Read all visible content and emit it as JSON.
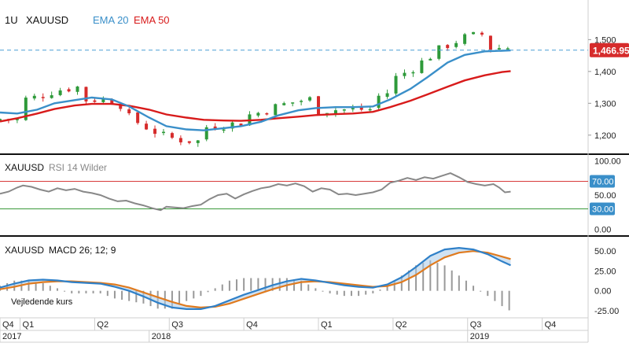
{
  "chart_data": [
    {
      "type": "candlestick",
      "panel": "price",
      "interval": "1U",
      "symbol": "XAUUSD",
      "overlays": [
        {
          "name": "EMA 20",
          "color": "#3a8fc9"
        },
        {
          "name": "EMA 50",
          "color": "#d81b1b"
        }
      ],
      "last_price": "1,466.95",
      "last_value": 1466.95,
      "ylim": [
        1150,
        1580
      ],
      "yticks": [
        {
          "value": 1500,
          "label": "1,500"
        },
        {
          "value": 1400,
          "label": "1,400"
        },
        {
          "value": 1300,
          "label": "1,300"
        },
        {
          "value": 1200,
          "label": "1,200"
        }
      ],
      "candles": [],
      "ema20": [
        {
          "t": 0,
          "v": 1271
        },
        {
          "t": 6,
          "v": 1268
        },
        {
          "t": 13,
          "v": 1280
        },
        {
          "t": 19,
          "v": 1300
        },
        {
          "t": 26,
          "v": 1310
        },
        {
          "t": 32,
          "v": 1318
        },
        {
          "t": 39,
          "v": 1312
        },
        {
          "t": 45,
          "v": 1290
        },
        {
          "t": 52,
          "v": 1255
        },
        {
          "t": 58,
          "v": 1228
        },
        {
          "t": 65,
          "v": 1218
        },
        {
          "t": 71,
          "v": 1215
        },
        {
          "t": 78,
          "v": 1222
        },
        {
          "t": 84,
          "v": 1228
        },
        {
          "t": 91,
          "v": 1242
        },
        {
          "t": 97,
          "v": 1262
        },
        {
          "t": 104,
          "v": 1278
        },
        {
          "t": 110,
          "v": 1285
        },
        {
          "t": 117,
          "v": 1288
        },
        {
          "t": 123,
          "v": 1288
        },
        {
          "t": 130,
          "v": 1290
        },
        {
          "t": 136,
          "v": 1312
        },
        {
          "t": 143,
          "v": 1345
        },
        {
          "t": 149,
          "v": 1382
        },
        {
          "t": 156,
          "v": 1428
        },
        {
          "t": 162,
          "v": 1452
        },
        {
          "t": 169,
          "v": 1463
        },
        {
          "t": 175,
          "v": 1465
        },
        {
          "t": 178,
          "v": 1466
        }
      ],
      "ema50": [
        {
          "t": 0,
          "v": 1243
        },
        {
          "t": 6,
          "v": 1253
        },
        {
          "t": 13,
          "v": 1268
        },
        {
          "t": 19,
          "v": 1282
        },
        {
          "t": 26,
          "v": 1293
        },
        {
          "t": 32,
          "v": 1298
        },
        {
          "t": 39,
          "v": 1298
        },
        {
          "t": 45,
          "v": 1292
        },
        {
          "t": 52,
          "v": 1280
        },
        {
          "t": 58,
          "v": 1265
        },
        {
          "t": 65,
          "v": 1255
        },
        {
          "t": 71,
          "v": 1248
        },
        {
          "t": 78,
          "v": 1246
        },
        {
          "t": 84,
          "v": 1245
        },
        {
          "t": 91,
          "v": 1248
        },
        {
          "t": 97,
          "v": 1253
        },
        {
          "t": 104,
          "v": 1258
        },
        {
          "t": 110,
          "v": 1263
        },
        {
          "t": 117,
          "v": 1266
        },
        {
          "t": 123,
          "v": 1268
        },
        {
          "t": 130,
          "v": 1273
        },
        {
          "t": 136,
          "v": 1288
        },
        {
          "t": 143,
          "v": 1308
        },
        {
          "t": 149,
          "v": 1328
        },
        {
          "t": 156,
          "v": 1352
        },
        {
          "t": 162,
          "v": 1372
        },
        {
          "t": 169,
          "v": 1388
        },
        {
          "t": 175,
          "v": 1398
        },
        {
          "t": 178,
          "v": 1401
        }
      ]
    },
    {
      "type": "line",
      "panel": "rsi",
      "symbol": "XAUUSD",
      "indicator": "RSI 14 Wilder",
      "ylim": [
        -5,
        105
      ],
      "yticks": [
        {
          "value": 100,
          "label": "100.00"
        },
        {
          "value": 70,
          "label": "70.00"
        },
        {
          "value": 50,
          "label": "50.00"
        },
        {
          "value": 30,
          "label": "30.00"
        },
        {
          "value": 0,
          "label": "0.00"
        }
      ],
      "levels": [
        {
          "value": 70,
          "label": "70.00",
          "color": "#d83b3b"
        },
        {
          "value": 30,
          "label": "30.00",
          "color": "#3a9a3a"
        }
      ],
      "series": [
        {
          "color": "#888888",
          "points": [
            {
              "t": 0,
              "v": 52
            },
            {
              "t": 3,
              "v": 55
            },
            {
              "t": 6,
              "v": 61
            },
            {
              "t": 8,
              "v": 64
            },
            {
              "t": 11,
              "v": 62
            },
            {
              "t": 14,
              "v": 58
            },
            {
              "t": 17,
              "v": 55
            },
            {
              "t": 20,
              "v": 60
            },
            {
              "t": 23,
              "v": 57
            },
            {
              "t": 26,
              "v": 59
            },
            {
              "t": 29,
              "v": 55
            },
            {
              "t": 32,
              "v": 53
            },
            {
              "t": 35,
              "v": 50
            },
            {
              "t": 38,
              "v": 45
            },
            {
              "t": 41,
              "v": 41
            },
            {
              "t": 44,
              "v": 42
            },
            {
              "t": 47,
              "v": 38
            },
            {
              "t": 50,
              "v": 35
            },
            {
              "t": 53,
              "v": 31
            },
            {
              "t": 56,
              "v": 28
            },
            {
              "t": 58,
              "v": 33
            },
            {
              "t": 61,
              "v": 32
            },
            {
              "t": 64,
              "v": 31
            },
            {
              "t": 67,
              "v": 34
            },
            {
              "t": 70,
              "v": 36
            },
            {
              "t": 73,
              "v": 44
            },
            {
              "t": 76,
              "v": 50
            },
            {
              "t": 79,
              "v": 52
            },
            {
              "t": 82,
              "v": 45
            },
            {
              "t": 85,
              "v": 51
            },
            {
              "t": 88,
              "v": 56
            },
            {
              "t": 91,
              "v": 60
            },
            {
              "t": 94,
              "v": 62
            },
            {
              "t": 97,
              "v": 66
            },
            {
              "t": 100,
              "v": 64
            },
            {
              "t": 103,
              "v": 67
            },
            {
              "t": 106,
              "v": 63
            },
            {
              "t": 109,
              "v": 55
            },
            {
              "t": 112,
              "v": 60
            },
            {
              "t": 115,
              "v": 58
            },
            {
              "t": 118,
              "v": 51
            },
            {
              "t": 121,
              "v": 52
            },
            {
              "t": 124,
              "v": 50
            },
            {
              "t": 127,
              "v": 52
            },
            {
              "t": 130,
              "v": 54
            },
            {
              "t": 133,
              "v": 58
            },
            {
              "t": 136,
              "v": 68
            },
            {
              "t": 139,
              "v": 71
            },
            {
              "t": 142,
              "v": 75
            },
            {
              "t": 145,
              "v": 72
            },
            {
              "t": 148,
              "v": 76
            },
            {
              "t": 151,
              "v": 74
            },
            {
              "t": 154,
              "v": 78
            },
            {
              "t": 157,
              "v": 82
            },
            {
              "t": 160,
              "v": 76
            },
            {
              "t": 163,
              "v": 69
            },
            {
              "t": 166,
              "v": 66
            },
            {
              "t": 169,
              "v": 64
            },
            {
              "t": 172,
              "v": 66
            },
            {
              "t": 174,
              "v": 61
            },
            {
              "t": 176,
              "v": 54
            },
            {
              "t": 178,
              "v": 55
            }
          ]
        }
      ]
    },
    {
      "type": "line",
      "panel": "macd",
      "symbol": "XAUUSD",
      "indicator": "MACD 26; 12; 9",
      "ylim": [
        -30,
        65
      ],
      "yticks": [
        {
          "value": 50,
          "label": "50.00"
        },
        {
          "value": 25,
          "label": "25.00"
        },
        {
          "value": 0,
          "label": "0.00"
        },
        {
          "value": -25,
          "label": "-25.00"
        }
      ],
      "series": [
        {
          "color": "#2f80c8",
          "points": [
            {
              "t": 0,
              "v": 4
            },
            {
              "t": 5,
              "v": 9
            },
            {
              "t": 10,
              "v": 13
            },
            {
              "t": 15,
              "v": 14
            },
            {
              "t": 20,
              "v": 13
            },
            {
              "t": 25,
              "v": 11
            },
            {
              "t": 30,
              "v": 10
            },
            {
              "t": 35,
              "v": 9
            },
            {
              "t": 40,
              "v": 5
            },
            {
              "t": 45,
              "v": 0
            },
            {
              "t": 50,
              "v": -7
            },
            {
              "t": 55,
              "v": -15
            },
            {
              "t": 60,
              "v": -21
            },
            {
              "t": 65,
              "v": -23
            },
            {
              "t": 70,
              "v": -23
            },
            {
              "t": 75,
              "v": -19
            },
            {
              "t": 80,
              "v": -12
            },
            {
              "t": 85,
              "v": -5
            },
            {
              "t": 90,
              "v": 1
            },
            {
              "t": 95,
              "v": 7
            },
            {
              "t": 100,
              "v": 12
            },
            {
              "t": 105,
              "v": 15
            },
            {
              "t": 110,
              "v": 13
            },
            {
              "t": 115,
              "v": 10
            },
            {
              "t": 120,
              "v": 7
            },
            {
              "t": 125,
              "v": 5
            },
            {
              "t": 130,
              "v": 4
            },
            {
              "t": 135,
              "v": 8
            },
            {
              "t": 140,
              "v": 17
            },
            {
              "t": 145,
              "v": 30
            },
            {
              "t": 150,
              "v": 44
            },
            {
              "t": 155,
              "v": 52
            },
            {
              "t": 160,
              "v": 54
            },
            {
              "t": 165,
              "v": 52
            },
            {
              "t": 170,
              "v": 46
            },
            {
              "t": 175,
              "v": 37
            },
            {
              "t": 178,
              "v": 32
            }
          ]
        },
        {
          "color": "#e07b1f",
          "points": [
            {
              "t": 0,
              "v": 2
            },
            {
              "t": 5,
              "v": 5
            },
            {
              "t": 10,
              "v": 9
            },
            {
              "t": 15,
              "v": 11
            },
            {
              "t": 20,
              "v": 12
            },
            {
              "t": 25,
              "v": 12
            },
            {
              "t": 30,
              "v": 11
            },
            {
              "t": 35,
              "v": 10
            },
            {
              "t": 40,
              "v": 8
            },
            {
              "t": 45,
              "v": 4
            },
            {
              "t": 50,
              "v": -2
            },
            {
              "t": 55,
              "v": -8
            },
            {
              "t": 60,
              "v": -14
            },
            {
              "t": 65,
              "v": -19
            },
            {
              "t": 70,
              "v": -21
            },
            {
              "t": 75,
              "v": -20
            },
            {
              "t": 80,
              "v": -16
            },
            {
              "t": 85,
              "v": -10
            },
            {
              "t": 90,
              "v": -4
            },
            {
              "t": 95,
              "v": 2
            },
            {
              "t": 100,
              "v": 7
            },
            {
              "t": 105,
              "v": 11
            },
            {
              "t": 110,
              "v": 12
            },
            {
              "t": 115,
              "v": 11
            },
            {
              "t": 120,
              "v": 9
            },
            {
              "t": 125,
              "v": 7
            },
            {
              "t": 130,
              "v": 5
            },
            {
              "t": 135,
              "v": 6
            },
            {
              "t": 140,
              "v": 11
            },
            {
              "t": 145,
              "v": 20
            },
            {
              "t": 150,
              "v": 32
            },
            {
              "t": 155,
              "v": 42
            },
            {
              "t": 160,
              "v": 48
            },
            {
              "t": 165,
              "v": 50
            },
            {
              "t": 170,
              "v": 48
            },
            {
              "t": 175,
              "v": 43
            },
            {
              "t": 178,
              "v": 40
            }
          ]
        }
      ],
      "histogram_color": "#999999",
      "histogram": []
    }
  ],
  "xaxis": {
    "quarters": [
      {
        "t": 0,
        "label": "Q4"
      },
      {
        "t": 7,
        "label": "Q1"
      },
      {
        "t": 33,
        "label": "Q2"
      },
      {
        "t": 59,
        "label": "Q3"
      },
      {
        "t": 85,
        "label": "Q4"
      },
      {
        "t": 111,
        "label": "Q1"
      },
      {
        "t": 137,
        "label": "Q2"
      },
      {
        "t": 163,
        "label": "Q3"
      },
      {
        "t": 189,
        "label": "Q4"
      }
    ],
    "years": [
      {
        "t": 0,
        "label": "2017"
      },
      {
        "t": 52,
        "label": "2018"
      },
      {
        "t": 163,
        "label": "2019"
      }
    ],
    "t_range": [
      0,
      205
    ]
  },
  "source_label": "Vejledende kurs",
  "colors": {
    "up": "#2e9a3a",
    "down": "#d62b2b",
    "price_line": "#4a9fd5",
    "badge": "#d62b2b",
    "rsi_upper": "#d83b3b",
    "rsi_lower": "#3a9a3a",
    "level_badge": "#3a8fc9"
  }
}
